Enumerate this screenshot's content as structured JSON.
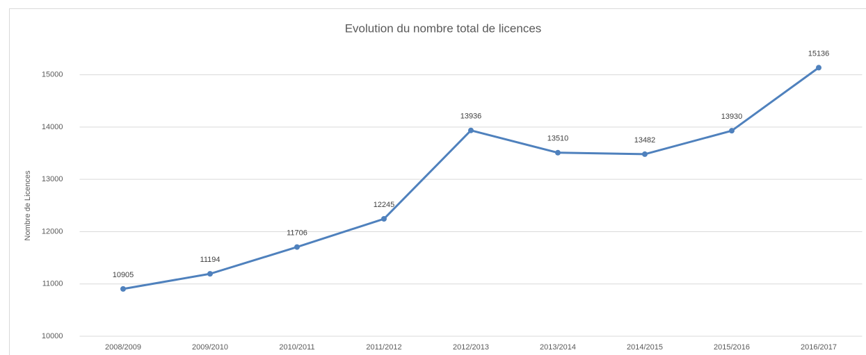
{
  "chart_data": {
    "type": "line",
    "title": "Evolution du nombre total de licences",
    "y_label": "Nombre de Licences",
    "categories": [
      "2008/2009",
      "2009/2010",
      "2010/2011",
      "2011/2012",
      "2012/2013",
      "2013/2014",
      "2014/2015",
      "2015/2016",
      "2016/2017"
    ],
    "values": [
      10905,
      11194,
      11706,
      12245,
      13936,
      13510,
      13482,
      13930,
      15136
    ],
    "color": "#4f81bd",
    "ylim": [
      10000,
      15500
    ],
    "yticks": [
      10000,
      11000,
      12000,
      13000,
      14000,
      15000
    ],
    "grid": true
  }
}
